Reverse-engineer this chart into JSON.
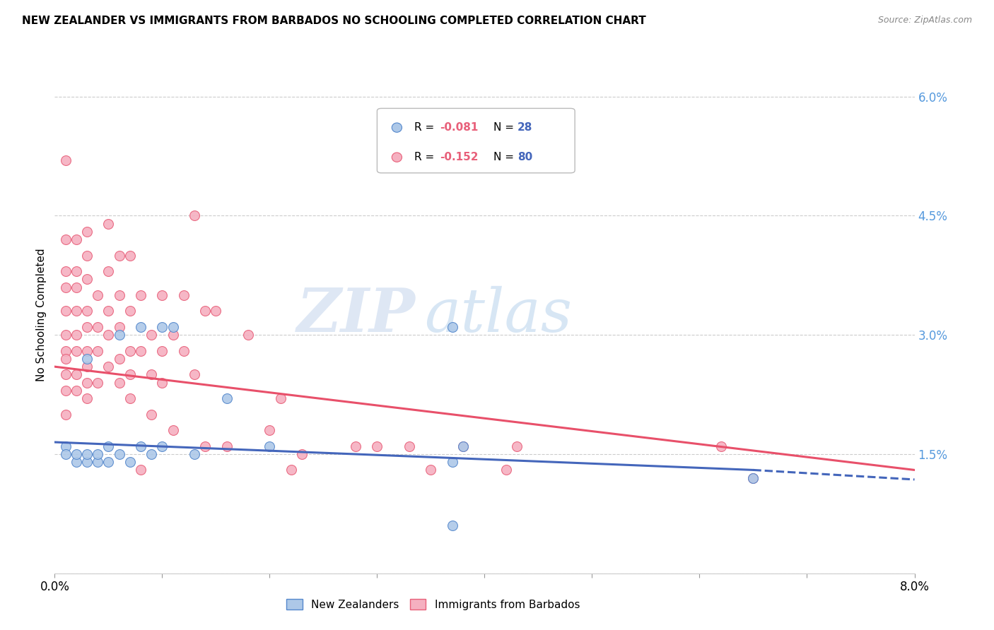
{
  "title": "NEW ZEALANDER VS IMMIGRANTS FROM BARBADOS NO SCHOOLING COMPLETED CORRELATION CHART",
  "source": "Source: ZipAtlas.com",
  "ylabel": "No Schooling Completed",
  "x_min": 0.0,
  "x_max": 0.08,
  "y_min": 0.0,
  "y_max": 0.065,
  "x_ticks": [
    0.0,
    0.01,
    0.02,
    0.03,
    0.04,
    0.05,
    0.06,
    0.07,
    0.08
  ],
  "x_tick_labels": [
    "0.0%",
    "",
    "",
    "",
    "",
    "",
    "",
    "",
    "8.0%"
  ],
  "y_ticks": [
    0.0,
    0.015,
    0.03,
    0.045,
    0.06
  ],
  "y_tick_labels": [
    "",
    "1.5%",
    "3.0%",
    "4.5%",
    "6.0%"
  ],
  "nz_color": "#adc8e8",
  "bb_color": "#f5b0c0",
  "nz_edge_color": "#5588cc",
  "bb_edge_color": "#e8607a",
  "nz_line_color": "#4466bb",
  "bb_line_color": "#e8506a",
  "watermark_zip": "ZIP",
  "watermark_atlas": "atlas",
  "background_color": "#ffffff",
  "grid_color": "#cccccc",
  "right_axis_color": "#5599dd",
  "nz_scatter_x": [
    0.001,
    0.001,
    0.002,
    0.002,
    0.003,
    0.003,
    0.003,
    0.004,
    0.004,
    0.005,
    0.005,
    0.006,
    0.006,
    0.007,
    0.008,
    0.008,
    0.009,
    0.01,
    0.01,
    0.011,
    0.013,
    0.016,
    0.02,
    0.037,
    0.037,
    0.037,
    0.065,
    0.038
  ],
  "nz_scatter_y": [
    0.016,
    0.015,
    0.014,
    0.015,
    0.014,
    0.015,
    0.027,
    0.014,
    0.015,
    0.014,
    0.016,
    0.015,
    0.03,
    0.014,
    0.016,
    0.031,
    0.015,
    0.016,
    0.031,
    0.031,
    0.015,
    0.022,
    0.016,
    0.014,
    0.006,
    0.031,
    0.012,
    0.016
  ],
  "bb_scatter_x": [
    0.001,
    0.001,
    0.001,
    0.001,
    0.001,
    0.001,
    0.001,
    0.001,
    0.001,
    0.001,
    0.001,
    0.002,
    0.002,
    0.002,
    0.002,
    0.002,
    0.002,
    0.002,
    0.002,
    0.003,
    0.003,
    0.003,
    0.003,
    0.003,
    0.003,
    0.003,
    0.003,
    0.003,
    0.004,
    0.004,
    0.004,
    0.004,
    0.005,
    0.005,
    0.005,
    0.005,
    0.005,
    0.006,
    0.006,
    0.006,
    0.006,
    0.006,
    0.007,
    0.007,
    0.007,
    0.007,
    0.007,
    0.008,
    0.008,
    0.008,
    0.009,
    0.009,
    0.009,
    0.01,
    0.01,
    0.01,
    0.011,
    0.011,
    0.012,
    0.012,
    0.013,
    0.013,
    0.014,
    0.014,
    0.015,
    0.016,
    0.018,
    0.02,
    0.021,
    0.022,
    0.023,
    0.028,
    0.03,
    0.033,
    0.035,
    0.038,
    0.042,
    0.043,
    0.062,
    0.065
  ],
  "bb_scatter_y": [
    0.052,
    0.042,
    0.038,
    0.036,
    0.033,
    0.03,
    0.028,
    0.027,
    0.025,
    0.023,
    0.02,
    0.042,
    0.038,
    0.036,
    0.033,
    0.03,
    0.028,
    0.025,
    0.023,
    0.043,
    0.04,
    0.037,
    0.033,
    0.031,
    0.028,
    0.026,
    0.024,
    0.022,
    0.035,
    0.031,
    0.028,
    0.024,
    0.044,
    0.038,
    0.033,
    0.03,
    0.026,
    0.04,
    0.035,
    0.031,
    0.027,
    0.024,
    0.04,
    0.033,
    0.028,
    0.025,
    0.022,
    0.035,
    0.028,
    0.013,
    0.03,
    0.025,
    0.02,
    0.035,
    0.028,
    0.024,
    0.03,
    0.018,
    0.035,
    0.028,
    0.045,
    0.025,
    0.033,
    0.016,
    0.033,
    0.016,
    0.03,
    0.018,
    0.022,
    0.013,
    0.015,
    0.016,
    0.016,
    0.016,
    0.013,
    0.016,
    0.013,
    0.016,
    0.016,
    0.012
  ],
  "bb_line_start_x": 0.0,
  "bb_line_start_y": 0.026,
  "bb_line_end_x": 0.08,
  "bb_line_end_y": 0.013,
  "nz_line_start_x": 0.0,
  "nz_line_start_y": 0.0165,
  "nz_line_solid_end_x": 0.065,
  "nz_line_solid_end_y": 0.013,
  "nz_line_dashed_end_x": 0.08,
  "nz_line_dashed_end_y": 0.0118
}
